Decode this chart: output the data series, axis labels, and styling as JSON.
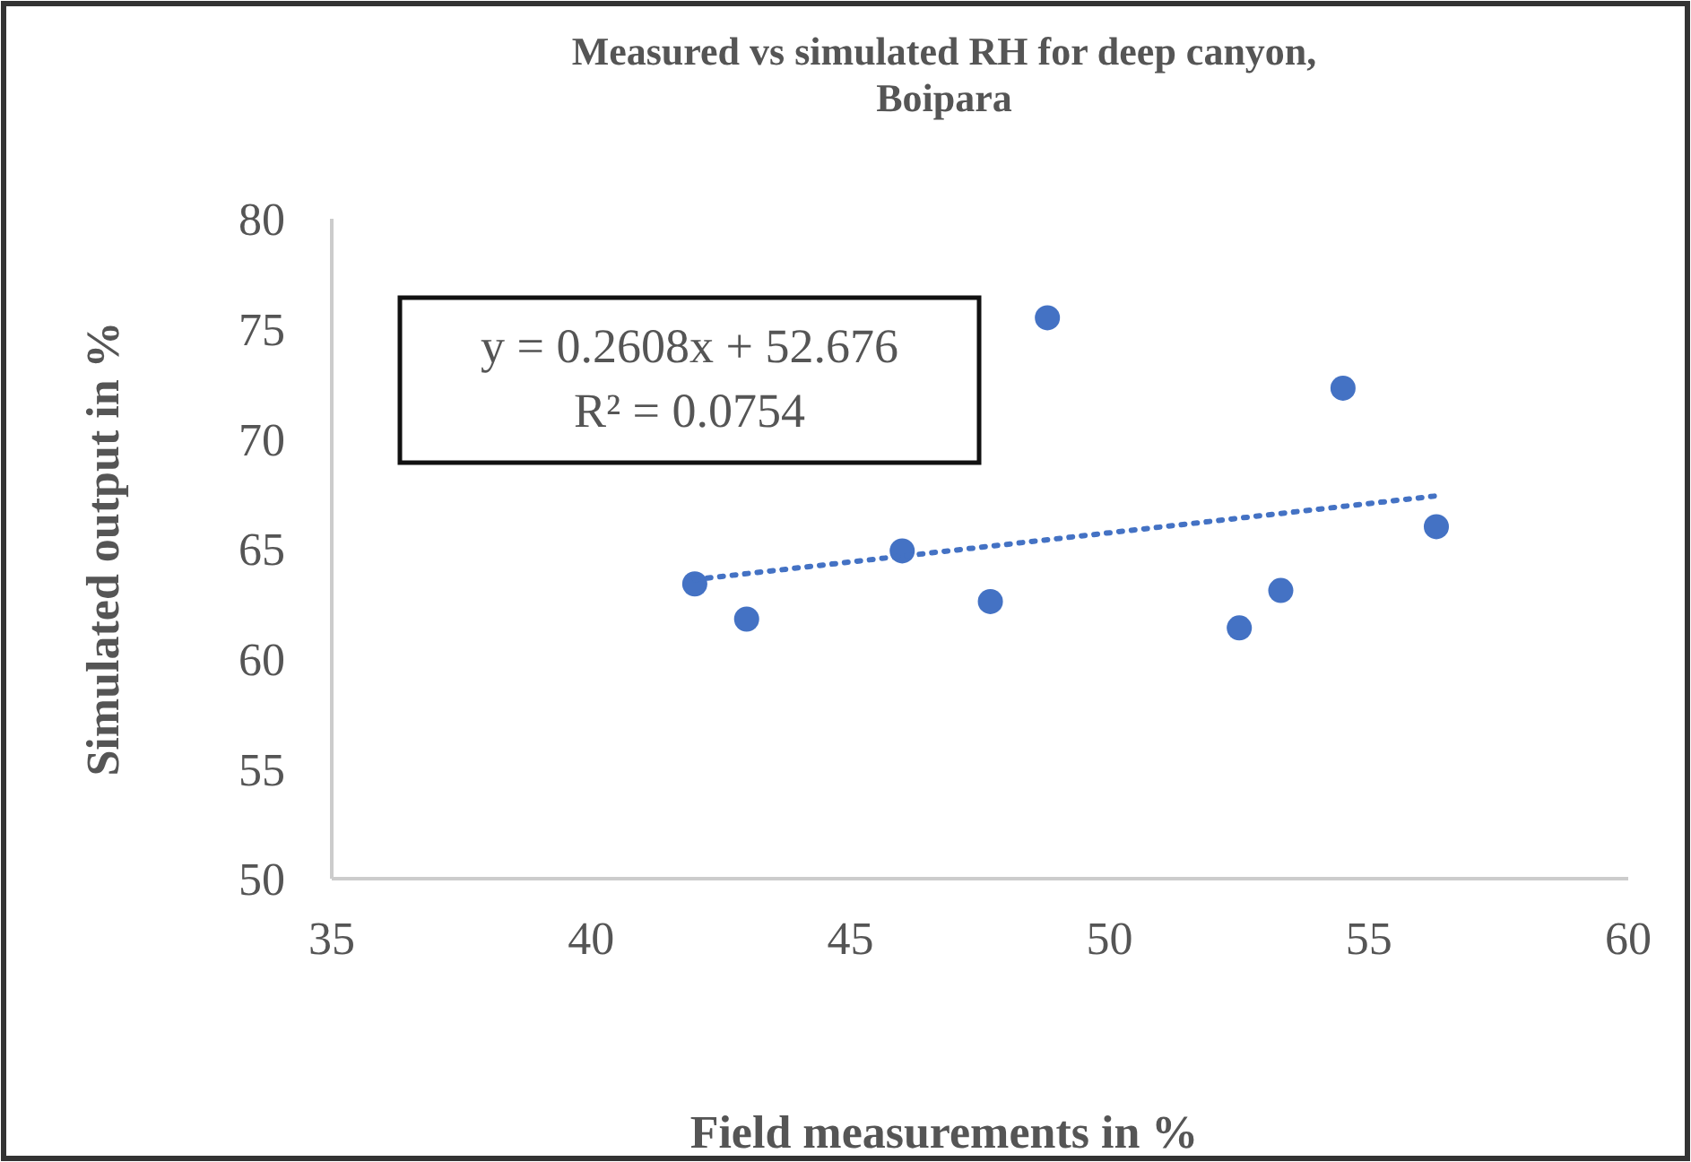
{
  "chart_data": {
    "type": "scatter",
    "title": "Measured vs simulated RH for deep canyon, Boipara",
    "xlabel": "Field measurements in %",
    "ylabel": "Simulated output in %",
    "xlim": [
      35,
      60
    ],
    "xticks": [
      35,
      40,
      45,
      50,
      55,
      60
    ],
    "ylim": [
      50,
      80
    ],
    "yticks": [
      50,
      55,
      60,
      65,
      70,
      75,
      80
    ],
    "grid": false,
    "marker": "circle",
    "annotations": [
      "y = 0.2608x + 52.676",
      "R² = 0.0754"
    ],
    "series": [
      {
        "color": "#4472c4",
        "x": [
          42.0,
          43.0,
          46.0,
          47.7,
          48.8,
          52.5,
          53.3,
          54.5,
          56.3
        ],
        "values": [
          63.4,
          61.8,
          64.9,
          62.6,
          75.5,
          61.4,
          63.1,
          72.3,
          66.0
        ]
      },
      {
        "type": "line",
        "color": "#4472c4",
        "line_style": "dotted",
        "marker": "none",
        "x": [
          42,
          56.3
        ],
        "values": [
          63.6,
          67.4
        ]
      }
    ]
  }
}
